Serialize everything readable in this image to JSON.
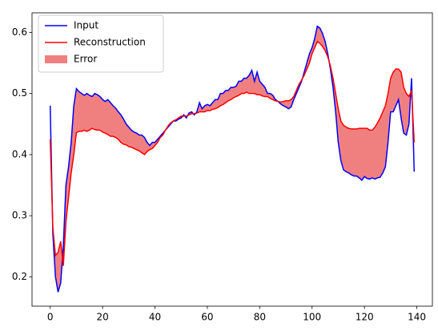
{
  "chart_data": {
    "type": "line",
    "x": [
      0,
      1,
      2,
      3,
      4,
      5,
      6,
      7,
      8,
      9,
      10,
      11,
      12,
      13,
      14,
      15,
      16,
      17,
      18,
      19,
      20,
      21,
      22,
      23,
      24,
      25,
      26,
      27,
      28,
      29,
      30,
      31,
      32,
      33,
      34,
      35,
      36,
      37,
      38,
      39,
      40,
      41,
      42,
      43,
      44,
      45,
      46,
      47,
      48,
      49,
      50,
      51,
      52,
      53,
      54,
      55,
      56,
      57,
      58,
      59,
      60,
      61,
      62,
      63,
      64,
      65,
      66,
      67,
      68,
      69,
      70,
      71,
      72,
      73,
      74,
      75,
      76,
      77,
      78,
      79,
      80,
      81,
      82,
      83,
      84,
      85,
      86,
      87,
      88,
      89,
      90,
      91,
      92,
      93,
      94,
      95,
      96,
      97,
      98,
      99,
      100,
      101,
      102,
      103,
      104,
      105,
      106,
      107,
      108,
      109,
      110,
      111,
      112,
      113,
      114,
      115,
      116,
      117,
      118,
      119,
      120,
      121,
      122,
      123,
      124,
      125,
      126,
      127,
      128,
      129,
      130,
      131,
      132,
      133,
      134,
      135,
      136,
      137,
      138,
      139
    ],
    "series": [
      {
        "name": "Input",
        "color": "#0000ff",
        "values": [
          0.48,
          0.27,
          0.2,
          0.175,
          0.19,
          0.25,
          0.35,
          0.38,
          0.42,
          0.48,
          0.508,
          0.503,
          0.5,
          0.497,
          0.5,
          0.497,
          0.495,
          0.5,
          0.498,
          0.495,
          0.49,
          0.487,
          0.49,
          0.485,
          0.48,
          0.476,
          0.47,
          0.465,
          0.458,
          0.45,
          0.445,
          0.44,
          0.437,
          0.435,
          0.432,
          0.432,
          0.428,
          0.42,
          0.415,
          0.42,
          0.42,
          0.425,
          0.43,
          0.435,
          0.44,
          0.445,
          0.45,
          0.455,
          0.455,
          0.458,
          0.46,
          0.465,
          0.46,
          0.468,
          0.47,
          0.465,
          0.47,
          0.485,
          0.475,
          0.48,
          0.482,
          0.48,
          0.485,
          0.49,
          0.49,
          0.5,
          0.5,
          0.505,
          0.505,
          0.51,
          0.51,
          0.512,
          0.52,
          0.52,
          0.525,
          0.525,
          0.53,
          0.538,
          0.52,
          0.535,
          0.52,
          0.515,
          0.51,
          0.5,
          0.5,
          0.497,
          0.49,
          0.487,
          0.483,
          0.48,
          0.478,
          0.475,
          0.478,
          0.49,
          0.5,
          0.51,
          0.52,
          0.535,
          0.55,
          0.565,
          0.575,
          0.59,
          0.61,
          0.607,
          0.598,
          0.585,
          0.565,
          0.54,
          0.51,
          0.47,
          0.42,
          0.39,
          0.375,
          0.372,
          0.37,
          0.367,
          0.365,
          0.365,
          0.362,
          0.358,
          0.364,
          0.361,
          0.36,
          0.362,
          0.36,
          0.362,
          0.363,
          0.37,
          0.38,
          0.42,
          0.47,
          0.47,
          0.48,
          0.49,
          0.46,
          0.435,
          0.432,
          0.45,
          0.525,
          0.372
        ]
      },
      {
        "name": "Reconstruction",
        "color": "#ff0000",
        "values": [
          0.425,
          0.28,
          0.235,
          0.24,
          0.258,
          0.218,
          0.29,
          0.33,
          0.37,
          0.4,
          0.436,
          0.438,
          0.438,
          0.44,
          0.438,
          0.44,
          0.443,
          0.441,
          0.44,
          0.44,
          0.437,
          0.435,
          0.433,
          0.43,
          0.43,
          0.428,
          0.425,
          0.42,
          0.417,
          0.416,
          0.413,
          0.412,
          0.41,
          0.408,
          0.406,
          0.403,
          0.4,
          0.405,
          0.408,
          0.41,
          0.415,
          0.42,
          0.428,
          0.432,
          0.44,
          0.447,
          0.452,
          0.455,
          0.457,
          0.46,
          0.463,
          0.463,
          0.463,
          0.465,
          0.467,
          0.467,
          0.468,
          0.47,
          0.47,
          0.47,
          0.472,
          0.472,
          0.474,
          0.475,
          0.477,
          0.48,
          0.482,
          0.485,
          0.488,
          0.49,
          0.493,
          0.495,
          0.497,
          0.5,
          0.5,
          0.502,
          0.5,
          0.5,
          0.5,
          0.498,
          0.498,
          0.496,
          0.495,
          0.495,
          0.492,
          0.49,
          0.488,
          0.487,
          0.486,
          0.487,
          0.488,
          0.488,
          0.49,
          0.495,
          0.505,
          0.515,
          0.522,
          0.53,
          0.54,
          0.55,
          0.565,
          0.575,
          0.585,
          0.582,
          0.577,
          0.57,
          0.56,
          0.545,
          0.525,
          0.5,
          0.475,
          0.455,
          0.448,
          0.445,
          0.443,
          0.442,
          0.442,
          0.442,
          0.443,
          0.443,
          0.443,
          0.443,
          0.44,
          0.44,
          0.445,
          0.452,
          0.46,
          0.47,
          0.48,
          0.5,
          0.525,
          0.535,
          0.54,
          0.54,
          0.535,
          0.51,
          0.5,
          0.495,
          0.505,
          0.42
        ]
      }
    ],
    "fill_between": {
      "name": "Error",
      "color": "#f08080"
    },
    "xlim": [
      -6.95,
      145.95
    ],
    "xticks": [
      0,
      20,
      40,
      60,
      80,
      100,
      120,
      140
    ],
    "ylim": [
      0.152,
      0.632
    ],
    "yticks": [
      0.2,
      0.3,
      0.4,
      0.5,
      0.6
    ],
    "legend": "upper left"
  }
}
